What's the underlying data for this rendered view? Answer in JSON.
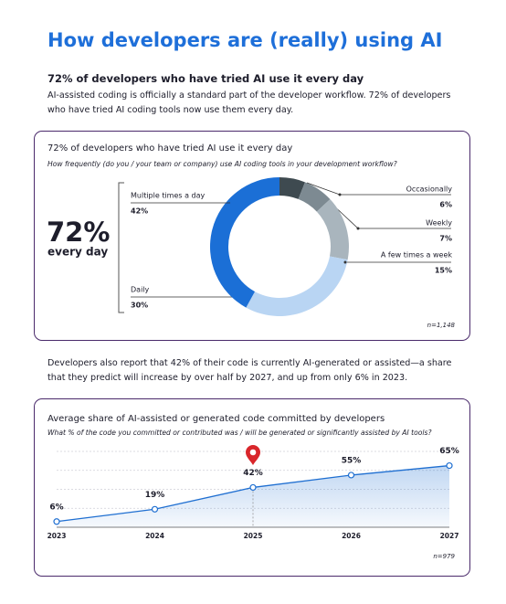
{
  "header": {
    "title": "How developers are (really) using AI",
    "subtitle": "72% of developers who have tried AI use it every day",
    "intro": "AI-assisted coding is officially a standard part of the developer workflow. 72% of developers who have tried AI coding tools now use them every day."
  },
  "middle_text": "Developers also report that 42% of their code is currently AI-generated or assisted—a share that they predict will increase by over half by 2027, and up from only 6% in 2023.",
  "chart_data": [
    {
      "type": "donut",
      "title": "72% of developers who have tried AI use it every day",
      "subtitle": "How frequently (do you / your team or company) use AI coding tools in your development workflow?",
      "callout": "72%",
      "callout_label": "every day",
      "categories": [
        "Occasionally",
        "Weekly",
        "A few times a week",
        "Daily",
        "Multiple times a day"
      ],
      "values": [
        6,
        7,
        15,
        30,
        42
      ],
      "value_labels": [
        "6%",
        "7%",
        "15%",
        "30%",
        "42%"
      ],
      "colors": [
        "#3e4a50",
        "#7d8a92",
        "#a9b5bd",
        "#b9d5f3",
        "#1b6fd6"
      ],
      "note": "n=1,148"
    },
    {
      "type": "area",
      "title": "Average share of AI-assisted or generated code committed by developers",
      "subtitle": "What % of the code you committed or contributed was / will be generated or significantly assisted by AI tools?",
      "x": [
        2023,
        2024,
        2025,
        2026,
        2027
      ],
      "values": [
        6,
        19,
        42,
        55,
        65
      ],
      "value_labels": [
        "6%",
        "19%",
        "42%",
        "55%",
        "65%"
      ],
      "color": "#1f6fd1",
      "ylim": [
        0,
        80
      ],
      "yticks": [
        20,
        40,
        60,
        80
      ],
      "grid": true,
      "note": "n=979"
    }
  ]
}
